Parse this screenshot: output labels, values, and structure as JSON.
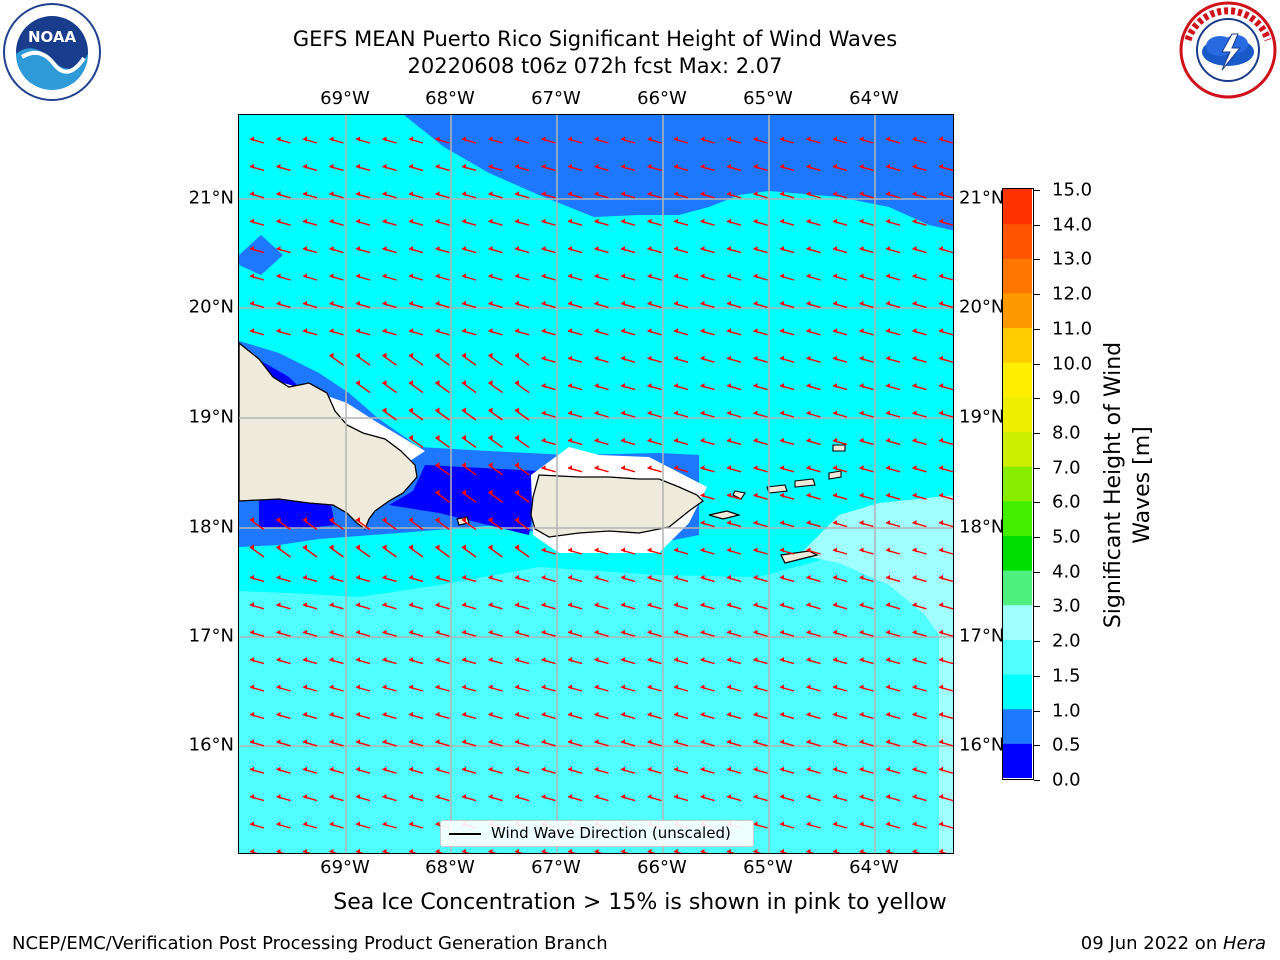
{
  "header": {
    "title_line1": "GEFS MEAN Puerto Rico Significant Height of Wind Waves",
    "title_line2": "20220608 t06z 072h fcst   Max: 2.07"
  },
  "logos": {
    "left": {
      "icon": "noaa-logo",
      "text": "NOAA",
      "ring_text": "NATIONAL OCEANIC AND ATMOSPHERIC ADMINISTRATION · U.S. DEPARTMENT OF COMMERCE"
    },
    "right": {
      "icon": "nws-logo",
      "ring_text": "NATIONAL WEATHER SERVICE"
    }
  },
  "map": {
    "lon_labels": [
      "69°W",
      "68°W",
      "67°W",
      "66°W",
      "65°W",
      "64°W"
    ],
    "lat_labels": [
      "21°N",
      "20°N",
      "19°N",
      "18°N",
      "17°N",
      "16°N"
    ],
    "legend_label": "Wind Wave Direction (unscaled)",
    "wave_direction": "westward (from east)"
  },
  "colorbar": {
    "label": "Significant Height of Wind Waves [m]",
    "ticks": [
      "15.0",
      "14.0",
      "13.0",
      "12.0",
      "11.0",
      "10.0",
      "9.0",
      "8.0",
      "7.0",
      "6.0",
      "5.0",
      "4.0",
      "3.0",
      "2.0",
      "1.5",
      "1.0",
      "0.5",
      "0.0"
    ],
    "colors": [
      "#0000ff",
      "#1e78ff",
      "#00ffff",
      "#50ffff",
      "#a0ffff",
      "#50f080",
      "#00dd00",
      "#44ee00",
      "#88ee00",
      "#ccee00",
      "#eeee00",
      "#ffee00",
      "#ffcc00",
      "#ff9900",
      "#ff7700",
      "#ff5500",
      "#ff3300"
    ]
  },
  "notes": {
    "sea_ice": "Sea Ice Concentration > 15% is shown in pink to yellow",
    "credit": "NCEP/EMC/Verification Post Processing Product Generation Branch",
    "date": "09 Jun 2022 on ",
    "host": "Hera"
  }
}
